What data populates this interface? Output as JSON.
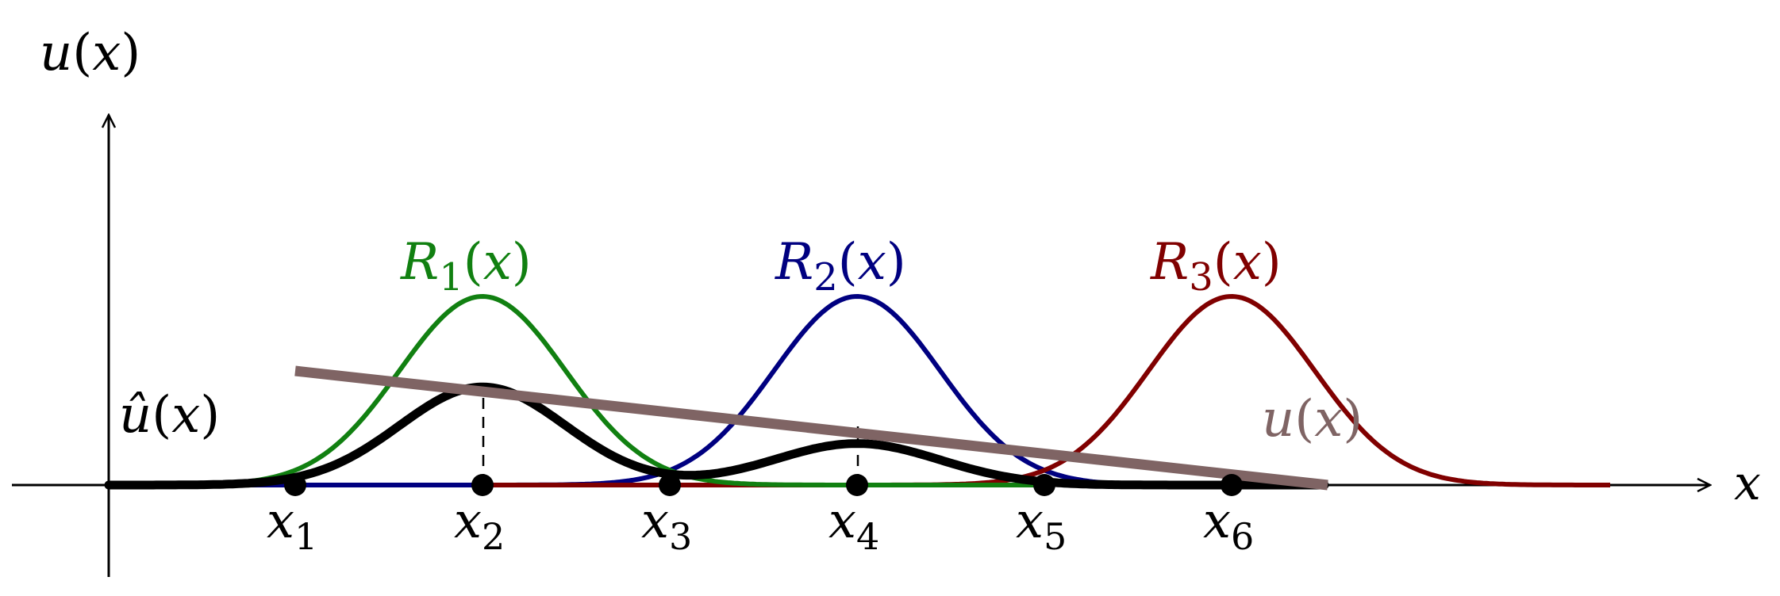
{
  "axis_labels": {
    "y_main": "u",
    "y_arg": "x",
    "x": "x"
  },
  "nodes": [
    {
      "name": "x",
      "sub": "1"
    },
    {
      "name": "x",
      "sub": "2"
    },
    {
      "name": "x",
      "sub": "3"
    },
    {
      "name": "x",
      "sub": "4"
    },
    {
      "name": "x",
      "sub": "5"
    },
    {
      "name": "x",
      "sub": "6"
    }
  ],
  "curves": {
    "R1": {
      "main": "R",
      "sub": "1",
      "arg": "x",
      "color": "#118011"
    },
    "R2": {
      "main": "R",
      "sub": "2",
      "arg": "x",
      "color": "#000080"
    },
    "R3": {
      "main": "R",
      "sub": "3",
      "arg": "x",
      "color": "#800000"
    },
    "u_hat": {
      "main": "û",
      "arg": "x",
      "color": "#000000"
    },
    "u": {
      "main": "u",
      "arg": "x",
      "color": "#7f6464"
    }
  },
  "colors": {
    "axis": "#000000",
    "node": "#000000"
  }
}
